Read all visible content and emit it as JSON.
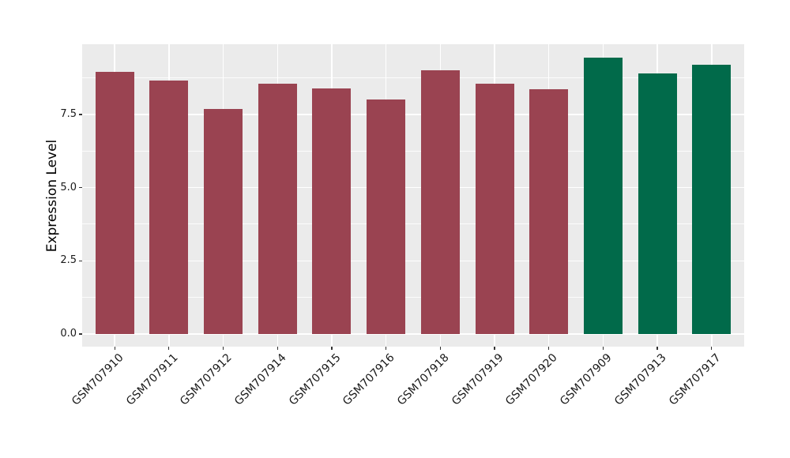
{
  "figure": {
    "background": "#FFFFFF",
    "panel_background": "#EBEBEB",
    "gridline_color": "#FFFFFF",
    "tick_mark_color": "#333333",
    "axis_text_color": "#1A1A1A"
  },
  "chart_data": {
    "type": "bar",
    "title": "",
    "xlabel": "",
    "ylabel": "Expression Level",
    "categories": [
      "GSM707910",
      "GSM707911",
      "GSM707912",
      "GSM707914",
      "GSM707915",
      "GSM707916",
      "GSM707918",
      "GSM707919",
      "GSM707920",
      "GSM707909",
      "GSM707913",
      "GSM707917"
    ],
    "values": [
      8.95,
      8.65,
      7.7,
      8.55,
      8.4,
      8.0,
      9.0,
      8.55,
      8.35,
      9.45,
      8.9,
      9.2
    ],
    "bar_colors": [
      "#9A4351",
      "#9A4351",
      "#9A4351",
      "#9A4351",
      "#9A4351",
      "#9A4351",
      "#9A4351",
      "#9A4351",
      "#9A4351",
      "#016A4A",
      "#016A4A",
      "#016A4A"
    ],
    "color_meaning": {
      "#9A4351": "dark-red bars (GSM707910-GSM707920 group)",
      "#016A4A": "dark-green bars (GSM707909, GSM707913, GSM707917 group)"
    },
    "yticks": {
      "values": [
        0.0,
        2.5,
        5.0,
        7.5
      ],
      "labels": [
        "0.0",
        "2.5",
        "5.0",
        "7.5"
      ]
    },
    "yticks_minor": [
      1.25,
      3.75,
      6.25,
      8.75
    ],
    "ylim": [
      -0.432,
      9.9
    ],
    "grid": "major and minor horizontal white lines, major vertical white lines at category centers",
    "legend": "none",
    "x_label_rotation_deg": 45
  }
}
